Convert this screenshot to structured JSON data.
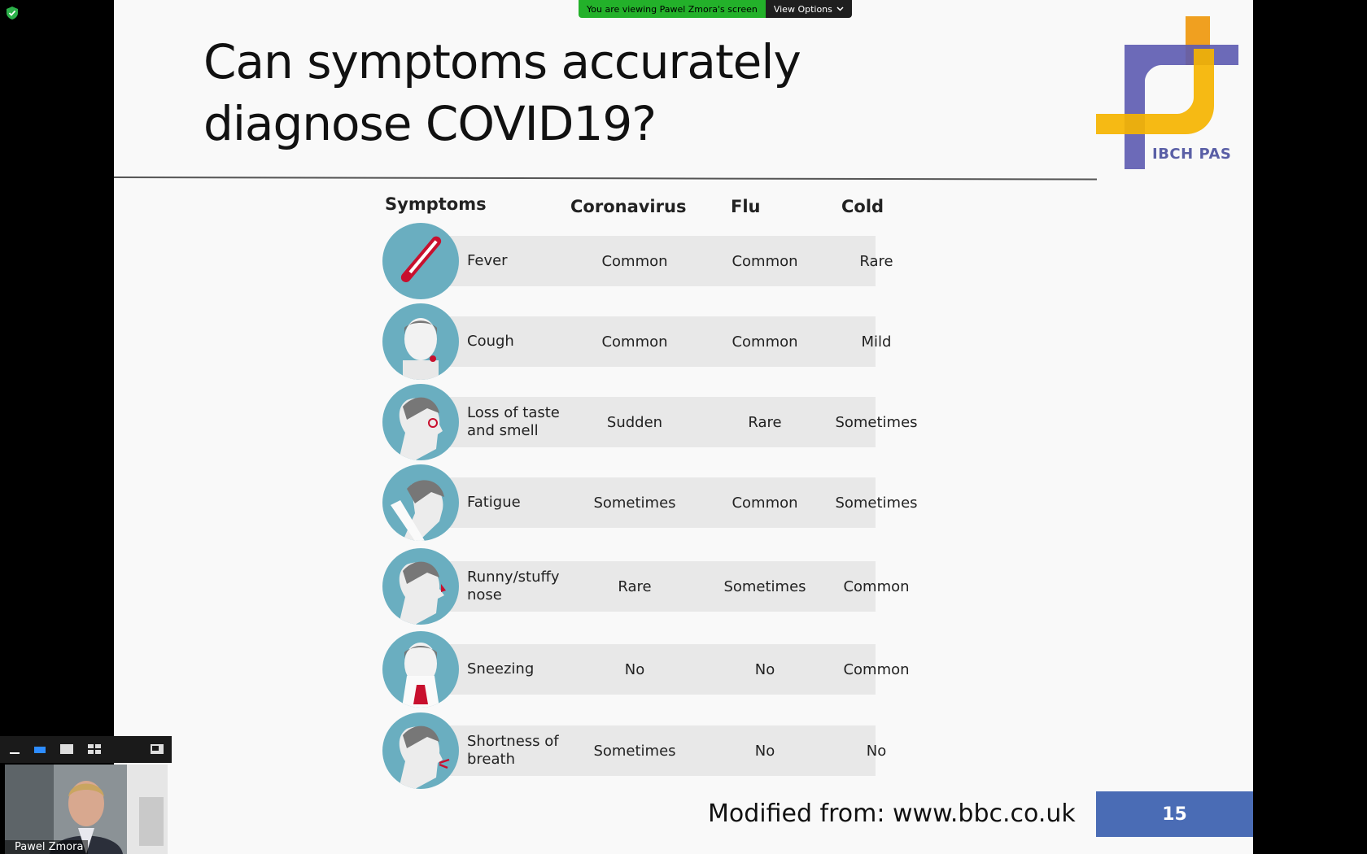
{
  "screen_share": {
    "banner_text": "You are viewing Pawel Zmora's screen",
    "view_options_label": "View Options"
  },
  "slide": {
    "title": "Can symptoms accurately\ndiagnose COVID19?",
    "logo_text": "IBCH PAS",
    "credit": "Modified from: www.bbc.co.uk",
    "page_number": "15",
    "columns": [
      "Symptoms",
      "Coronavirus",
      "Flu",
      "Cold"
    ],
    "rows": [
      {
        "symptom": "Fever",
        "coronavirus": "Common",
        "flu": "Common",
        "cold": "Rare",
        "icon": "thermometer-icon"
      },
      {
        "symptom": "Cough",
        "coronavirus": "Common",
        "flu": "Common",
        "cold": "Mild",
        "icon": "cough-icon"
      },
      {
        "symptom": "Loss of taste and smell",
        "coronavirus": "Sudden",
        "flu": "Rare",
        "cold": "Sometimes",
        "icon": "taste-smell-icon"
      },
      {
        "symptom": "Fatigue",
        "coronavirus": "Sometimes",
        "flu": "Common",
        "cold": "Sometimes",
        "icon": "fatigue-icon"
      },
      {
        "symptom": "Runny/stuffy nose",
        "coronavirus": "Rare",
        "flu": "Sometimes",
        "cold": "Common",
        "icon": "runny-nose-icon"
      },
      {
        "symptom": "Sneezing",
        "coronavirus": "No",
        "flu": "No",
        "cold": "Common",
        "icon": "sneezing-icon"
      },
      {
        "symptom": "Shortness of breath",
        "coronavirus": "Sometimes",
        "flu": "No",
        "cold": "No",
        "icon": "shortness-of-breath-icon"
      }
    ]
  },
  "participant": {
    "name": "Pawel Zmora"
  },
  "colors": {
    "share_green": "#23b12a",
    "icon_circle": "#6aaec0",
    "page_number_bg": "#4a6cb5"
  }
}
